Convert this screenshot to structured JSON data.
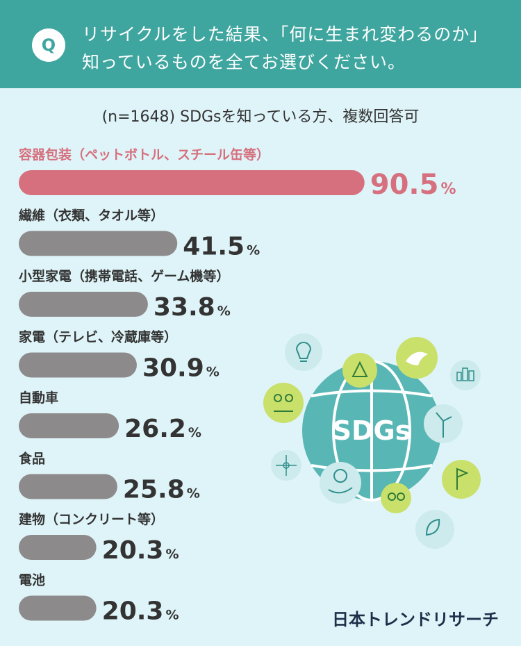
{
  "header": {
    "badge": "Q",
    "question_line1": "リサイクルをした結果、「何に生まれ変わるのか」",
    "question_line2": "知っているものを全てお選びください。"
  },
  "subtitle": "(n=1648) SDGsを知っている方、複数回答可",
  "chart_data": {
    "type": "bar",
    "orientation": "horizontal",
    "categories": [
      "容器包装（ペットボトル、スチール缶等）",
      "繊維（衣類、タオル等）",
      "小型家電（携帯電話、ゲーム機等）",
      "家電（テレビ、冷蔵庫等）",
      "自動車",
      "食品",
      "建物（コンクリート等）",
      "電池"
    ],
    "values": [
      90.5,
      41.5,
      33.8,
      30.9,
      26.2,
      25.8,
      20.3,
      20.3
    ],
    "value_labels": [
      "90.5",
      "41.5",
      "33.8",
      "30.9",
      "26.2",
      "25.8",
      "20.3",
      "20.3"
    ],
    "unit": "%",
    "highlight_index": 0,
    "colors": {
      "highlight": "#d6707e",
      "default": "#8d8a8b",
      "highlight_text": "#d6707e",
      "default_text": "#333333"
    }
  },
  "illustration": {
    "label": "SDGs",
    "icons": [
      "lightbulb-icon",
      "recycle-icon",
      "bird-icon",
      "city-icon",
      "people-icon",
      "wind-turbine-icon",
      "network-icon",
      "tree-hand-icon",
      "gender-icon",
      "flag-icon",
      "leaf-icon"
    ]
  },
  "logo": "日本トレンドリサーチ"
}
